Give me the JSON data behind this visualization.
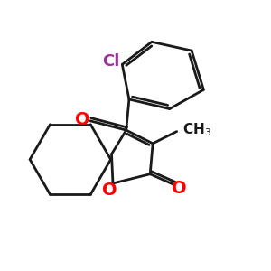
{
  "bg_color": "#ffffff",
  "bond_color": "#1a1a1a",
  "o_color": "#ff0000",
  "cl_color": "#993399",
  "line_width": 2.0,
  "fig_size": [
    3.0,
    3.0
  ],
  "dpi": 100,
  "xlim": [
    0,
    10
  ],
  "ylim": [
    0,
    10
  ]
}
